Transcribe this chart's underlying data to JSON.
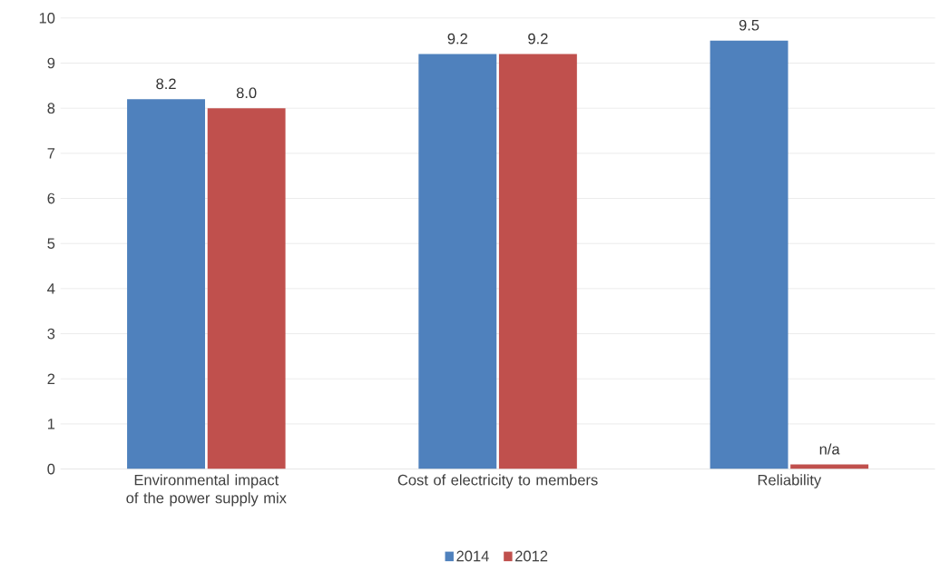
{
  "chart_data": {
    "type": "bar",
    "categories": [
      "Environmental impact of the power supply mix",
      "Cost of electricity to members",
      "Reliability"
    ],
    "series": [
      {
        "name": "2014",
        "color": "#4f81bd",
        "values": [
          8.2,
          9.2,
          9.5
        ],
        "value_labels": [
          "8.2",
          "9.2",
          "9.5"
        ]
      },
      {
        "name": "2012",
        "color": "#c0504d",
        "values": [
          8.0,
          9.2,
          0.1
        ],
        "value_labels": [
          "8.0",
          "9.2",
          "n/a"
        ]
      }
    ],
    "ylim": [
      0,
      10
    ],
    "yticks": [
      0,
      1,
      2,
      3,
      4,
      5,
      6,
      7,
      8,
      9,
      10
    ],
    "grid": "y",
    "legend": "bottom"
  }
}
